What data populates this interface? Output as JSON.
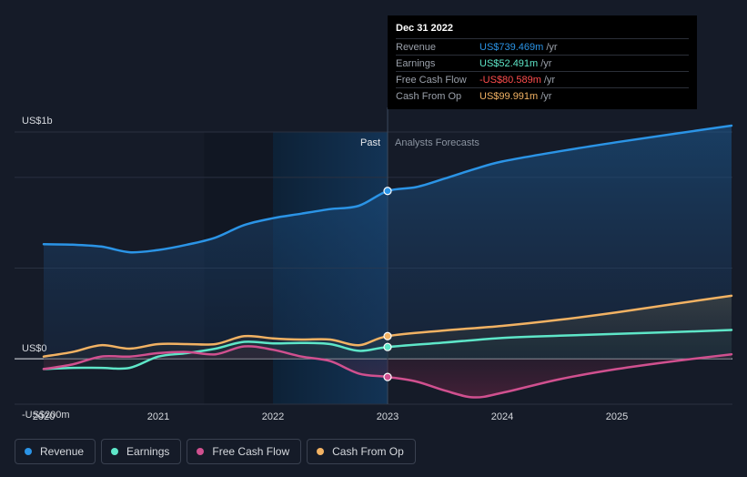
{
  "tooltip": {
    "date": "Dec 31 2022",
    "rows": [
      {
        "label": "Revenue",
        "value": "US$739.469m",
        "unit": "/yr",
        "color": "#2b94e6"
      },
      {
        "label": "Earnings",
        "value": "US$52.491m",
        "unit": "/yr",
        "color": "#5ee6c8"
      },
      {
        "label": "Free Cash Flow",
        "value": "-US$80.589m",
        "unit": "/yr",
        "color": "#ff4d4d"
      },
      {
        "label": "Cash From Op",
        "value": "US$99.991m",
        "unit": "/yr",
        "color": "#f2b263"
      }
    ]
  },
  "legend": [
    {
      "label": "Revenue",
      "color": "#2b94e6"
    },
    {
      "label": "Earnings",
      "color": "#5ee6c8"
    },
    {
      "label": "Free Cash Flow",
      "color": "#d0508f"
    },
    {
      "label": "Cash From Op",
      "color": "#f2b263"
    }
  ],
  "chart_data": {
    "type": "line",
    "ylim": [
      -200,
      1000
    ],
    "xlim": [
      2019.8,
      2026.0
    ],
    "y_tick_labels": [
      {
        "value": 1000,
        "label": "US$1b"
      },
      {
        "value": 0,
        "label": "US$0"
      },
      {
        "value": -200,
        "label": "-US$200m"
      }
    ],
    "x_ticks": [
      2020,
      2021,
      2022,
      2023,
      2024,
      2025
    ],
    "x_tick_labels": [
      "2020",
      "2021",
      "2022",
      "2023",
      "2024",
      "2025"
    ],
    "divider_x": 2023.0,
    "past_label": "Past",
    "forecast_label": "Analysts Forecasts",
    "series": [
      {
        "name": "Revenue",
        "color": "#2b94e6",
        "marker_x": 2023.0,
        "points": [
          [
            2020.0,
            505
          ],
          [
            2020.25,
            503
          ],
          [
            2020.5,
            495
          ],
          [
            2020.75,
            470
          ],
          [
            2021.0,
            480
          ],
          [
            2021.25,
            503
          ],
          [
            2021.5,
            535
          ],
          [
            2021.75,
            590
          ],
          [
            2022.0,
            620
          ],
          [
            2022.25,
            640
          ],
          [
            2022.5,
            660
          ],
          [
            2022.75,
            675
          ],
          [
            2023.0,
            740
          ],
          [
            2023.25,
            757
          ],
          [
            2023.5,
            795
          ],
          [
            2023.75,
            835
          ],
          [
            2024.0,
            870
          ],
          [
            2024.5,
            915
          ],
          [
            2025.0,
            955
          ],
          [
            2025.5,
            992
          ],
          [
            2026.0,
            1028
          ]
        ]
      },
      {
        "name": "Earnings",
        "color": "#5ee6c8",
        "marker_x": 2023.0,
        "points": [
          [
            2020.0,
            -45
          ],
          [
            2020.25,
            -40
          ],
          [
            2020.5,
            -40
          ],
          [
            2020.75,
            -40
          ],
          [
            2021.0,
            10
          ],
          [
            2021.25,
            25
          ],
          [
            2021.5,
            45
          ],
          [
            2021.75,
            75
          ],
          [
            2022.0,
            68
          ],
          [
            2022.25,
            70
          ],
          [
            2022.5,
            65
          ],
          [
            2022.75,
            35
          ],
          [
            2023.0,
            52
          ],
          [
            2023.5,
            72
          ],
          [
            2024.0,
            92
          ],
          [
            2024.5,
            102
          ],
          [
            2025.0,
            110
          ],
          [
            2025.5,
            118
          ],
          [
            2026.0,
            127
          ]
        ]
      },
      {
        "name": "Free Cash Flow",
        "color": "#d0508f",
        "marker_x": 2023.0,
        "points": [
          [
            2020.0,
            -45
          ],
          [
            2020.25,
            -25
          ],
          [
            2020.5,
            10
          ],
          [
            2020.75,
            10
          ],
          [
            2021.0,
            25
          ],
          [
            2021.25,
            30
          ],
          [
            2021.5,
            20
          ],
          [
            2021.75,
            55
          ],
          [
            2022.0,
            40
          ],
          [
            2022.25,
            10
          ],
          [
            2022.5,
            -10
          ],
          [
            2022.75,
            -65
          ],
          [
            2023.0,
            -80
          ],
          [
            2023.25,
            -100
          ],
          [
            2023.5,
            -140
          ],
          [
            2023.75,
            -170
          ],
          [
            2024.0,
            -150
          ],
          [
            2024.5,
            -90
          ],
          [
            2025.0,
            -45
          ],
          [
            2025.5,
            -10
          ],
          [
            2026.0,
            20
          ]
        ]
      },
      {
        "name": "Cash From Op",
        "color": "#f2b263",
        "marker_x": 2023.0,
        "points": [
          [
            2020.0,
            10
          ],
          [
            2020.25,
            30
          ],
          [
            2020.5,
            60
          ],
          [
            2020.75,
            45
          ],
          [
            2021.0,
            65
          ],
          [
            2021.25,
            65
          ],
          [
            2021.5,
            65
          ],
          [
            2021.75,
            100
          ],
          [
            2022.0,
            90
          ],
          [
            2022.25,
            85
          ],
          [
            2022.5,
            85
          ],
          [
            2022.75,
            60
          ],
          [
            2023.0,
            100
          ],
          [
            2023.5,
            125
          ],
          [
            2024.0,
            145
          ],
          [
            2024.5,
            172
          ],
          [
            2025.0,
            205
          ],
          [
            2025.5,
            242
          ],
          [
            2026.0,
            278
          ]
        ]
      }
    ]
  }
}
